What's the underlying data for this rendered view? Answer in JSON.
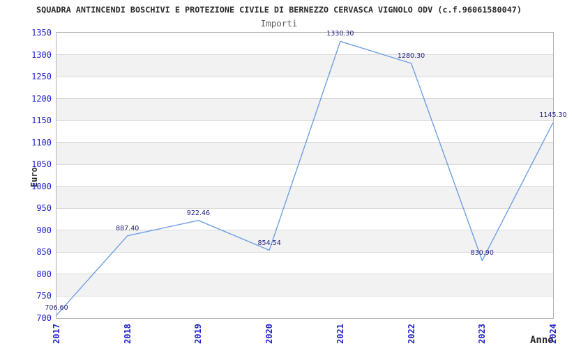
{
  "chart_data": {
    "type": "line",
    "title": "SQUADRA ANTINCENDI BOSCHIVI E PROTEZIONE CIVILE DI BERNEZZO CERVASCA VIGNOLO ODV (c.f.96061580047)",
    "subtitle": "Importi",
    "xlabel": "Anno",
    "ylabel": "Euro",
    "categories": [
      "2017",
      "2018",
      "2019",
      "2020",
      "2021",
      "2022",
      "2023",
      "2024"
    ],
    "values": [
      706.6,
      887.4,
      922.46,
      854.54,
      1330.3,
      1280.3,
      830.9,
      1145.3
    ],
    "point_labels": [
      "706.60",
      "887.40",
      "922.46",
      "854.54",
      "1330.30",
      "1280.30",
      "830.90",
      "1145.30"
    ],
    "ylim": [
      700,
      1350
    ],
    "ytick_step": 50,
    "grid": true,
    "legend": "none",
    "band_pattern": "alternating horizontal bands, white and light gray, starting white at top",
    "colors": {
      "line": "#6e9fe3",
      "axis_text": "#2222cc",
      "point_label": "#202080",
      "title": "#2b2b2b",
      "subtitle": "#5f5f5f",
      "band_alt": "#f2f2f2",
      "gridline": "#d9d9d9",
      "plot_border": "#b3b3b3",
      "background": "#ffffff"
    }
  }
}
